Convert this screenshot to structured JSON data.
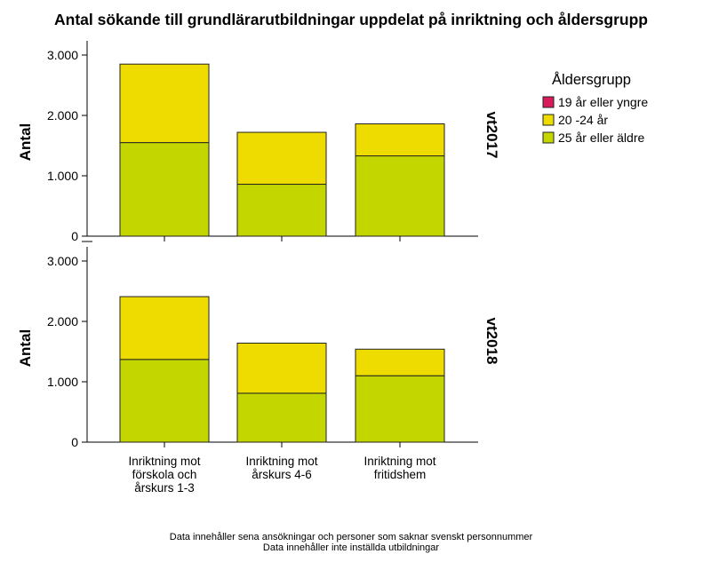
{
  "chart_data": {
    "type": "bar",
    "stacked": true,
    "title": "Antal sökande till grundlärarutbildningar uppdelat på inriktning och åldersgrupp",
    "ylabel": "Antal",
    "categories": [
      [
        "Inriktning mot",
        "förskola och",
        "årskurs 1-3"
      ],
      [
        "Inriktning mot",
        "årskurs 4-6"
      ],
      [
        "Inriktning mot",
        "fritidshem"
      ]
    ],
    "ylim": [
      0,
      3000
    ],
    "yticks": [
      0,
      1000,
      2000,
      3000
    ],
    "ytick_labels": [
      "0",
      "1.000",
      "2.000",
      "3.000"
    ],
    "legend": {
      "title": "Åldersgrupp",
      "placement": "right",
      "entries": [
        {
          "name": "19 år eller yngre",
          "color": "#d81b5a"
        },
        {
          "name": "20 -24 år",
          "color": "#eedc00"
        },
        {
          "name": "25 år eller äldre",
          "color": "#c4d600"
        }
      ]
    },
    "panels": [
      {
        "label": "vt2017",
        "series": [
          {
            "name": "19 år eller yngre",
            "values": [
              0,
              0,
              0
            ]
          },
          {
            "name": "25 år eller äldre",
            "values": [
              1550,
              860,
              1330
            ]
          },
          {
            "name": "20 -24 år",
            "values": [
              1300,
              860,
              530
            ]
          }
        ]
      },
      {
        "label": "vt2018",
        "series": [
          {
            "name": "19 år eller yngre",
            "values": [
              0,
              0,
              0
            ]
          },
          {
            "name": "25 år eller äldre",
            "values": [
              1370,
              810,
              1100
            ]
          },
          {
            "name": "20 -24 år",
            "values": [
              1040,
              830,
              440
            ]
          }
        ]
      }
    ],
    "grid": false,
    "footnotes": [
      "Data innehåller sena ansökningar och personer som saknar svenskt personnummer",
      "Data innehåller inte inställda utbildningar"
    ]
  }
}
